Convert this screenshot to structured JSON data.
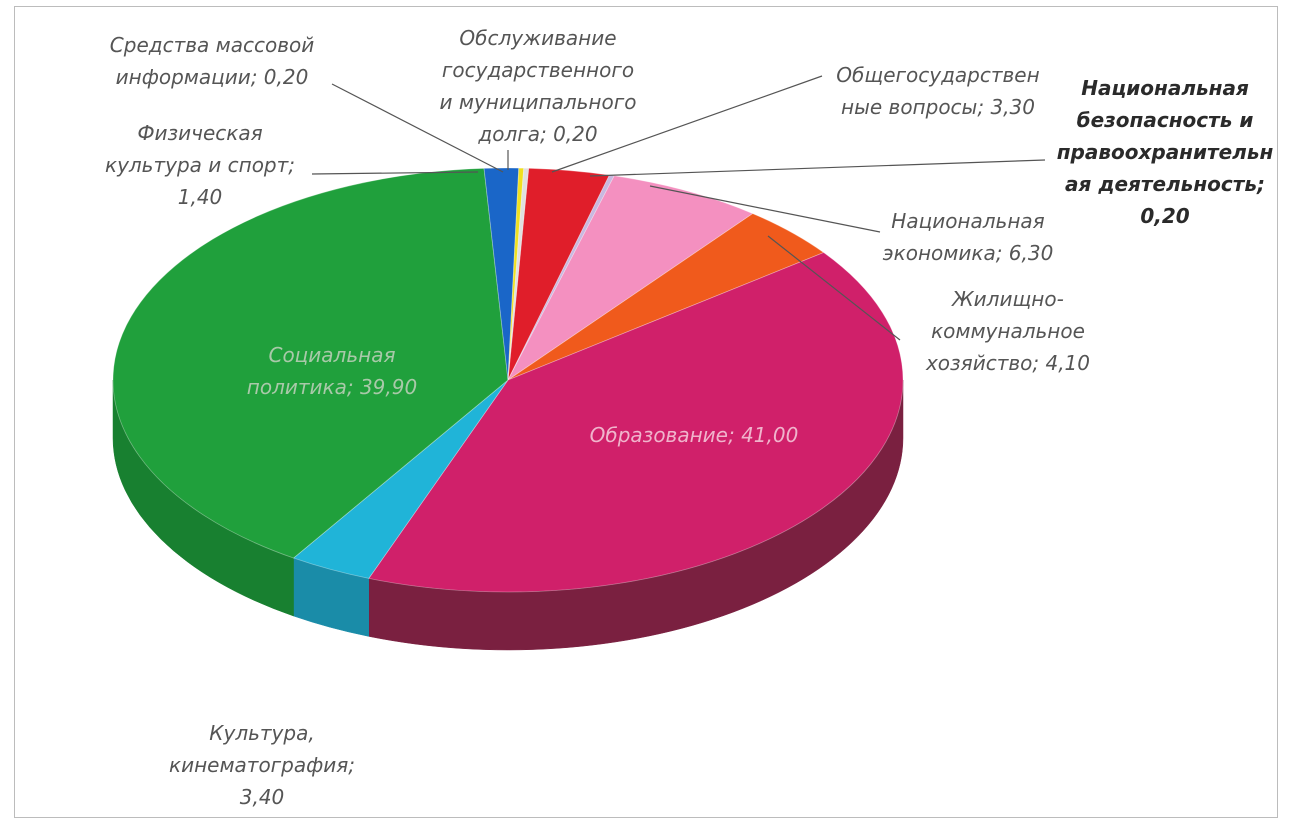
{
  "chart_data": {
    "type": "pie",
    "title": "",
    "slices": [
      {
        "label": "Общегосударственные вопросы",
        "value": 3.3,
        "color": "#e01e2a",
        "side": "#a8141d"
      },
      {
        "label": "Национальная безопасность и правоохранительная деятельность",
        "value": 0.2,
        "color": "#c8b8e0",
        "side": "#9a8cb0"
      },
      {
        "label": "Национальная экономика",
        "value": 6.3,
        "color": "#f490c0",
        "side": "#b86a90"
      },
      {
        "label": "Жилищно-коммунальное хозяйство",
        "value": 4.1,
        "color": "#f05a1c",
        "side": "#b54214"
      },
      {
        "label": "Образование",
        "value": 41.0,
        "color": "#d0206a",
        "side": "#7a2040"
      },
      {
        "label": "Культура, кинематография",
        "value": 3.4,
        "color": "#20b4d8",
        "side": "#1a8ca8"
      },
      {
        "label": "Социальная политика",
        "value": 39.9,
        "color": "#20a03c",
        "side": "#188030"
      },
      {
        "label": "Физическая культура и спорт",
        "value": 1.4,
        "color": "#1a66c8",
        "side": "#134e98"
      },
      {
        "label": "Средства массовой информации",
        "value": 0.2,
        "color": "#f0e020",
        "side": "#b8aa18"
      },
      {
        "label": "Обслуживание государственного и муниципального долга",
        "value": 0.2,
        "color": "#e0e0e0",
        "side": "#a8a8a8"
      }
    ],
    "data_labels": {
      "gos": [
        "Общегосударствен",
        "ные вопросы; 3,30"
      ],
      "bez": [
        "Национальная",
        "безопасность и",
        "правоохранительн",
        "ая деятельность;",
        "0,20"
      ],
      "econ": [
        "Национальная",
        "экономика; 6,30"
      ],
      "zhkh": [
        "Жилищно-",
        "коммунальное",
        "хозяйство; 4,10"
      ],
      "obr": [
        "Образование; 41,00"
      ],
      "kult": [
        "Культура,",
        "кинематография;",
        "3,40"
      ],
      "soc": [
        "Социальная",
        "политика; 39,90"
      ],
      "fiz": [
        "Физическая",
        "культура и спорт;",
        "1,40"
      ],
      "smi": [
        "Средства массовой",
        "информации; 0,20"
      ],
      "dolg": [
        "Обслуживание",
        "государственного",
        "и  муниципального",
        "долга; 0,20"
      ]
    }
  }
}
